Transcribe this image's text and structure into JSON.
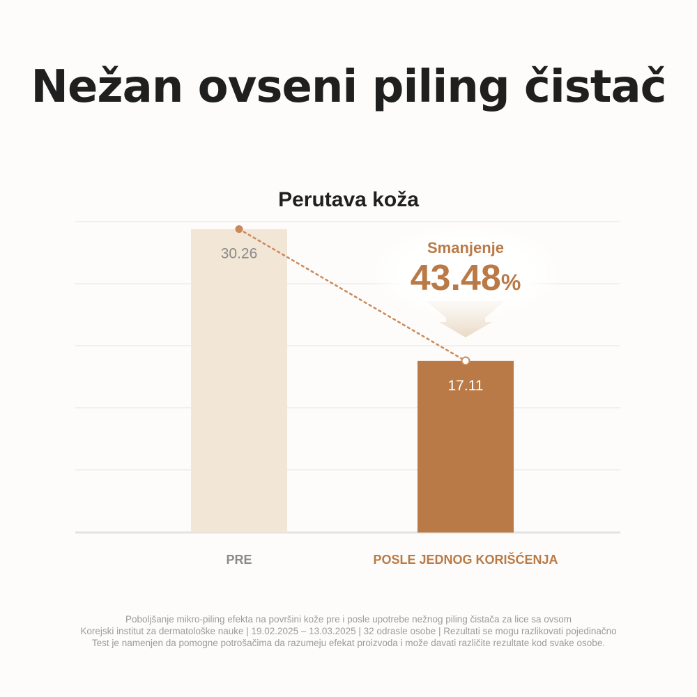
{
  "headline": "Nežan ovseni piling čistač",
  "chart_data": {
    "type": "bar",
    "title": "Perutava koža",
    "categories": [
      "PRE",
      "POSLE JEDNOG KORIŠĆENJA"
    ],
    "values": [
      30.26,
      17.11
    ],
    "value_labels": [
      "30.26",
      "17.11"
    ],
    "ylim": [
      0,
      31
    ],
    "grid": true,
    "bar_colors": [
      "#f2e6d6",
      "#b97a47"
    ],
    "category_label_colors": [
      "#8a8a8a",
      "#b97a47"
    ],
    "value_label_colors": [
      "#8a8a8a",
      "#ffffff"
    ],
    "annotation": {
      "label": "Smanjenje",
      "value": "43.48",
      "unit": "%",
      "color": "#b97a47"
    }
  },
  "footnote": [
    "Poboljšanje mikro-piling efekta na površini kože pre i posle upotrebe nežnog piling čistača za lice sa ovsom",
    "Korejski institut za dermatološke nauke | 19.02.2025 – 13.03.2025 | 32 odrasle osobe | Rezultati se mogu razlikovati pojedinačno",
    "Test je namenjen da pomogne potrošačima da razumeju efekat proizvoda i može davati različite rezultate kod svake osobe."
  ]
}
